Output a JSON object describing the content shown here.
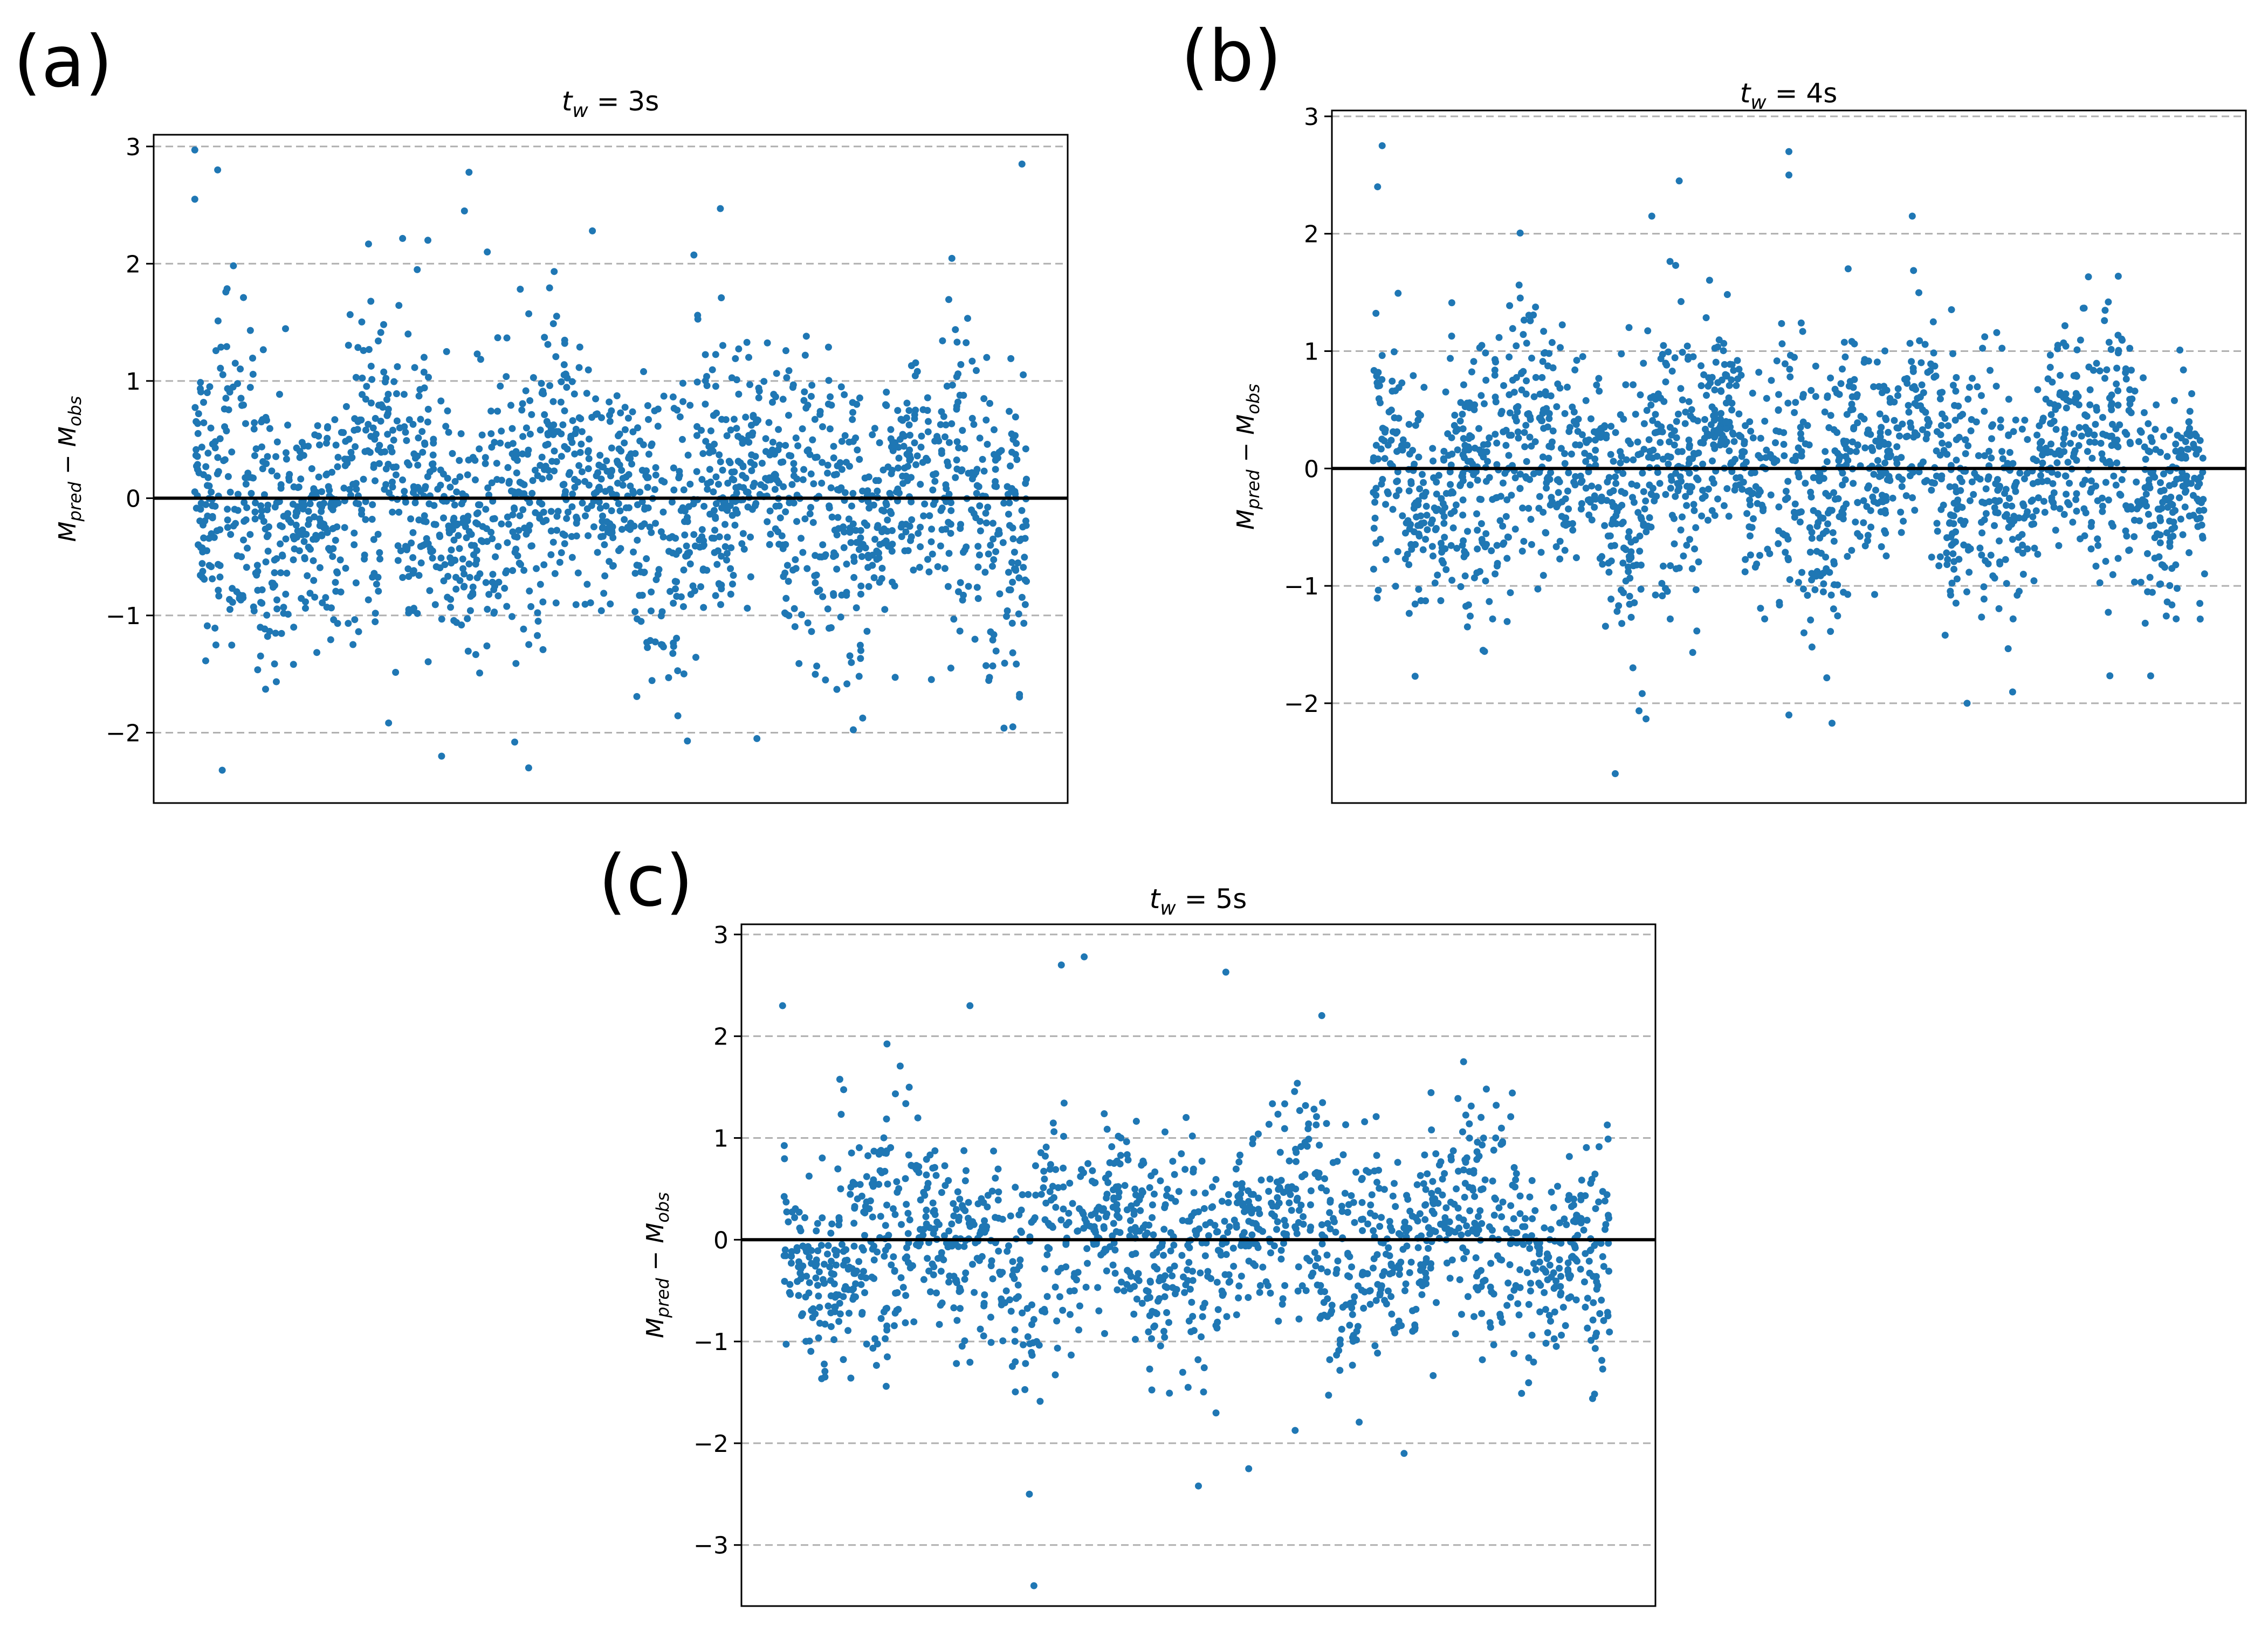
{
  "figure": {
    "panel_labels": [
      "(a)",
      "(b)",
      "(c)"
    ],
    "marker_color": "#1f77b4",
    "zero_line_color": "#000000",
    "grid_color": "#b0b0b0"
  },
  "chart_data": [
    {
      "panel": "(a)",
      "type": "scatter",
      "title": {
        "prefix": "t",
        "sub": "w",
        "suffix": " = 3s"
      },
      "ylabel": {
        "a": "M",
        "a_sub": "pred",
        "op": " − ",
        "b": "M",
        "b_sub": "obs"
      },
      "yticks": [
        "3",
        "2",
        "1",
        "0",
        "−1",
        "−2"
      ],
      "ytick_values": [
        3,
        2,
        1,
        0,
        -1,
        -2
      ],
      "ylim": [
        -2.6,
        3.1
      ],
      "xlim": [
        0,
        1
      ],
      "reference_line": 0,
      "grid": "horizontal dashed",
      "n_points": 2000,
      "spread_sd": 0.55,
      "outliers": [
        [
          0.045,
          2.97
        ],
        [
          0.07,
          2.8
        ],
        [
          0.045,
          2.55
        ],
        [
          0.3,
          2.2
        ],
        [
          0.34,
          2.45
        ],
        [
          0.345,
          2.78
        ],
        [
          0.365,
          2.1
        ],
        [
          0.48,
          2.28
        ],
        [
          0.62,
          2.47
        ],
        [
          0.95,
          2.85
        ],
        [
          0.075,
          -2.32
        ],
        [
          0.315,
          -2.2
        ],
        [
          0.395,
          -2.08
        ],
        [
          0.66,
          -2.05
        ],
        [
          0.94,
          -1.95
        ]
      ]
    },
    {
      "panel": "(b)",
      "type": "scatter",
      "title": {
        "prefix": "t",
        "sub": "w",
        "suffix": " = 4s"
      },
      "ylabel": {
        "a": "M",
        "a_sub": "pred",
        "op": " − ",
        "b": "M",
        "b_sub": "obs"
      },
      "yticks": [
        "3",
        "2",
        "1",
        "0",
        "−1",
        "−2"
      ],
      "ytick_values": [
        3,
        2,
        1,
        0,
        -1,
        -2
      ],
      "ylim": [
        -2.85,
        3.05
      ],
      "xlim": [
        0,
        1
      ],
      "reference_line": 0,
      "grid": "horizontal dashed",
      "n_points": 2000,
      "spread_sd": 0.5,
      "outliers": [
        [
          0.055,
          2.75
        ],
        [
          0.05,
          2.4
        ],
        [
          0.35,
          2.15
        ],
        [
          0.38,
          2.45
        ],
        [
          0.5,
          2.7
        ],
        [
          0.5,
          2.5
        ],
        [
          0.635,
          2.15
        ],
        [
          0.31,
          -2.6
        ],
        [
          0.5,
          -2.1
        ],
        [
          0.695,
          -2.0
        ]
      ]
    },
    {
      "panel": "(c)",
      "type": "scatter",
      "title": {
        "prefix": "t",
        "sub": "w",
        "suffix": " = 5s"
      },
      "ylabel": {
        "a": "M",
        "a_sub": "pred",
        "op": " − ",
        "b": "M",
        "b_sub": "obs"
      },
      "yticks": [
        "3",
        "2",
        "1",
        "0",
        "−1",
        "−2",
        "−3"
      ],
      "ytick_values": [
        3,
        2,
        1,
        0,
        -1,
        -2,
        -3
      ],
      "ylim": [
        -3.6,
        3.1
      ],
      "xlim": [
        0,
        1
      ],
      "reference_line": 0,
      "grid": "horizontal dashed",
      "n_points": 1600,
      "spread_sd": 0.5,
      "outliers": [
        [
          0.375,
          2.78
        ],
        [
          0.53,
          2.63
        ],
        [
          0.25,
          2.3
        ],
        [
          0.045,
          2.3
        ],
        [
          0.35,
          2.7
        ],
        [
          0.315,
          -2.5
        ],
        [
          0.32,
          -3.4
        ],
        [
          0.5,
          -2.42
        ],
        [
          0.555,
          -2.25
        ],
        [
          0.725,
          -2.1
        ]
      ]
    }
  ]
}
